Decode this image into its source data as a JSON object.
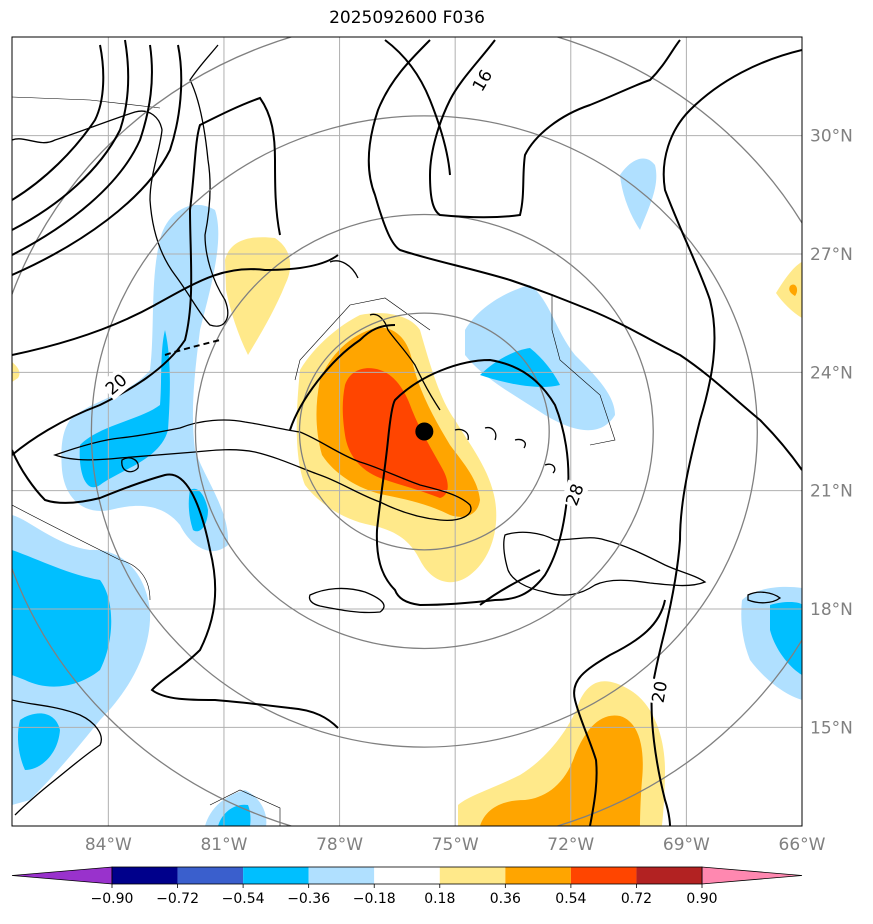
{
  "title": "2025092600 F036",
  "map": {
    "lon_range": [
      -86.5,
      -66
    ],
    "lat_range": [
      12.5,
      32.5
    ],
    "lon_ticks": [
      {
        "value": -84,
        "label": "84°W"
      },
      {
        "value": -81,
        "label": "81°W"
      },
      {
        "value": -78,
        "label": "78°W"
      },
      {
        "value": -75,
        "label": "75°W"
      },
      {
        "value": -72,
        "label": "72°W"
      },
      {
        "value": -69,
        "label": "69°W"
      },
      {
        "value": -66,
        "label": "66°W"
      }
    ],
    "lat_ticks": [
      {
        "value": 15,
        "label": "15°N"
      },
      {
        "value": 18,
        "label": "18°N"
      },
      {
        "value": 21,
        "label": "21°N"
      },
      {
        "value": 24,
        "label": "24°N"
      },
      {
        "value": 27,
        "label": "27°N"
      },
      {
        "value": 30,
        "label": "30°N"
      }
    ],
    "gridlines": true,
    "storm_center": {
      "lon": -75.8,
      "lat": 22.5
    },
    "range_rings_deg": [
      3,
      5.5,
      8,
      10.5
    ],
    "contour_labels": [
      {
        "text": "16",
        "lon": -74.3,
        "lat": 31.4,
        "angle": -60
      },
      {
        "text": "20",
        "lon": -83.8,
        "lat": 23.7,
        "angle": -40
      },
      {
        "text": "28",
        "lon": -71.9,
        "lat": 20.9,
        "angle": -70
      },
      {
        "text": "20",
        "lon": -69.7,
        "lat": 15.9,
        "angle": -80
      }
    ]
  },
  "colorbar": {
    "levels": [
      -0.9,
      -0.72,
      -0.54,
      -0.36,
      -0.18,
      0.18,
      0.36,
      0.54,
      0.72,
      0.9
    ],
    "tick_labels": [
      "−0.90",
      "−0.72",
      "−0.54",
      "−0.36",
      "−0.18",
      "0.18",
      "0.36",
      "0.54",
      "0.72",
      "0.90"
    ],
    "colors": {
      "under": "#9932cc",
      "bins": [
        "#00008b",
        "#3a5fcd",
        "#00bfff",
        "#b0e0ff",
        "#ffffff",
        "#ffe98a",
        "#ffa500",
        "#ff4500",
        "#b22222"
      ],
      "over": "#ff88b0"
    }
  }
}
